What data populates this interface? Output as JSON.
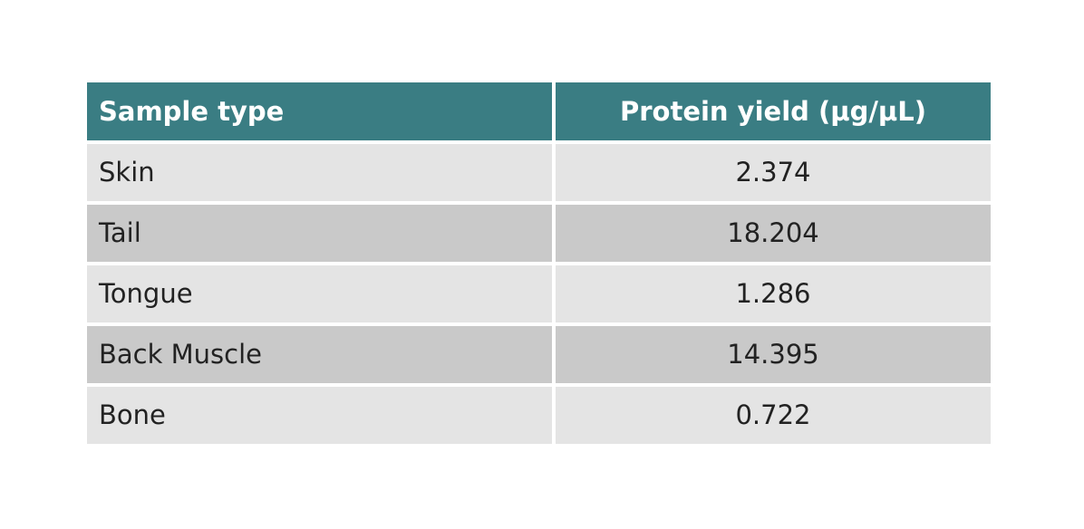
{
  "table": {
    "header_bg": "#3a7d83",
    "row_bg_light": "#e4e4e4",
    "row_bg_dark": "#c9c9c9",
    "columns": [
      "Sample type",
      "Protein yield (µg/µL)"
    ],
    "rows": [
      {
        "sample": "Skin",
        "yield": "2.374"
      },
      {
        "sample": "Tail",
        "yield": "18.204"
      },
      {
        "sample": "Tongue",
        "yield": "1.286"
      },
      {
        "sample": "Back Muscle",
        "yield": "14.395"
      },
      {
        "sample": "Bone",
        "yield": "0.722"
      }
    ]
  }
}
